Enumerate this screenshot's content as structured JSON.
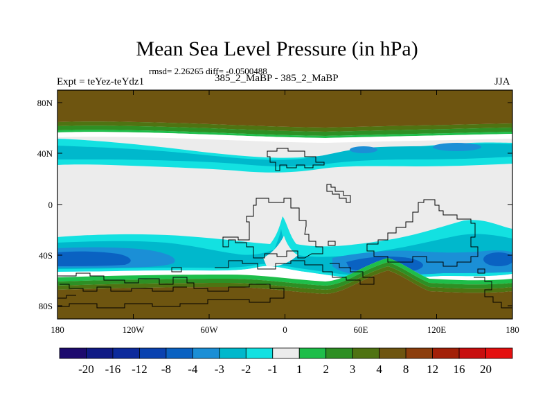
{
  "title": "Mean Sea Level Pressure (in hPa)",
  "stats": "rmsd= 2.26265 diff= -0.0500488",
  "left_label": "Expt = teYez-teYdz1",
  "center_label": "385_2_MaBP - 385_2_MaBP",
  "right_label": "JJA",
  "map": {
    "lat_ticks": [
      "80N",
      "40N",
      "0",
      "40S",
      "80S"
    ],
    "lat_values": [
      80,
      40,
      0,
      -40,
      -80
    ],
    "lon_ticks": [
      "180",
      "120W",
      "60W",
      "0",
      "60E",
      "120E",
      "180"
    ],
    "lon_values": [
      -180,
      -120,
      -60,
      0,
      60,
      120,
      180
    ]
  },
  "colorbar": {
    "labels": [
      "-20",
      "-16",
      "-12",
      "-8",
      "-4",
      "-3",
      "-2",
      "-1",
      "1",
      "2",
      "3",
      "4",
      "8",
      "12",
      "16",
      "20"
    ],
    "colors": [
      "#1d0a6e",
      "#101a85",
      "#0c2a9c",
      "#0a42b0",
      "#0a62c2",
      "#1b8fd6",
      "#00b8cc",
      "#13e1e1",
      "#ececec",
      "#1ebe4a",
      "#2e8f24",
      "#4f7312",
      "#6e5510",
      "#8c3e0c",
      "#a32008",
      "#c80e0e",
      "#e41010"
    ]
  },
  "palette": {
    "land_brown": "#6e5510",
    "olive": "#4f7312",
    "green": "#2e8f24",
    "light_green": "#1ebe4a",
    "white_band": "#ffffff",
    "neutral": "#ececec",
    "cyan": "#13e1e1",
    "teal": "#00b8cc",
    "mid_blue": "#1b8fd6",
    "blue": "#0a62c2"
  }
}
